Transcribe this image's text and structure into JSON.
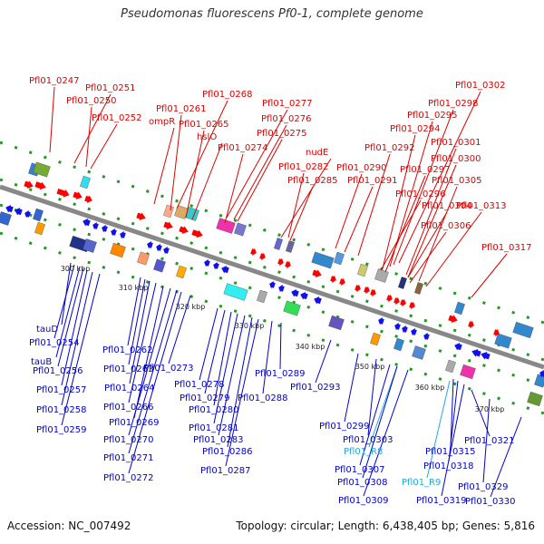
{
  "title": "Pseudomonas fluorescens Pf0-1, complete genome",
  "footer": {
    "accession": "Accession: NC_007492",
    "topology": "Topology: circular; Length: 6,438,405 bp; Genes: 5,816"
  },
  "colors": {
    "forward_label": "#dd0000",
    "reverse_label": "#0000cc",
    "rna_label": "#22aadd",
    "forward_arrow": "#ff0000",
    "reverse_arrow": "#1111ee",
    "backbone": "#888888",
    "dotted_track": "#229922"
  },
  "scale_ticks": [
    "300 kbp",
    "310 kbp",
    "320 kbp",
    "330 kbp",
    "340 kbp",
    "350 kbp",
    "360 kbp",
    "370 kbp"
  ],
  "forward_labels": [
    {
      "text": "Pfl01_0247"
    },
    {
      "text": "Pfl01_0251"
    },
    {
      "text": "Pfl01_0250"
    },
    {
      "text": "Pfl01_0252"
    },
    {
      "text": "Pfl01_0268"
    },
    {
      "text": "Pfl01_0261"
    },
    {
      "text": "ompR"
    },
    {
      "text": "Pfl01_0265"
    },
    {
      "text": "hslO"
    },
    {
      "text": "Pfl01_0277"
    },
    {
      "text": "Pfl01_0276"
    },
    {
      "text": "Pfl01_0275"
    },
    {
      "text": "Pfl01_0274"
    },
    {
      "text": "nudE"
    },
    {
      "text": "Pfl01_0282"
    },
    {
      "text": "Pfl01_0285"
    },
    {
      "text": "Pfl01_0290"
    },
    {
      "text": "Pfl01_0291"
    },
    {
      "text": "Pfl01_0292"
    },
    {
      "text": "Pfl01_0302"
    },
    {
      "text": "Pfl01_0298"
    },
    {
      "text": "Pfl01_0295"
    },
    {
      "text": "Pfl01_0294"
    },
    {
      "text": "Pfl01_0301"
    },
    {
      "text": "Pfl01_0300"
    },
    {
      "text": "Pfl01_0297"
    },
    {
      "text": "Pfl01_0305"
    },
    {
      "text": "Pfl01_0296"
    },
    {
      "text": "Pfl01_0304"
    },
    {
      "text": "Pfl01_0313"
    },
    {
      "text": "Pfl01_0306"
    },
    {
      "text": "Pfl01_0317"
    }
  ],
  "reverse_labels": [
    {
      "text": "tauD"
    },
    {
      "text": "Pfl01_0254"
    },
    {
      "text": "tauB"
    },
    {
      "text": "Pfl01_0256"
    },
    {
      "text": "Pfl01_0257"
    },
    {
      "text": "Pfl01_0258"
    },
    {
      "text": "Pfl01_0259"
    },
    {
      "text": "Pfl01_0262"
    },
    {
      "text": "Pfl01_0263"
    },
    {
      "text": "Pfl01_0264"
    },
    {
      "text": "Pfl01_0266"
    },
    {
      "text": "Pfl01_0269"
    },
    {
      "text": "Pfl01_0270"
    },
    {
      "text": "Pfl01_0271"
    },
    {
      "text": "Pfl01_0272"
    },
    {
      "text": "Pfl01_0273"
    },
    {
      "text": "Pfl01_0278"
    },
    {
      "text": "Pfl01_0279"
    },
    {
      "text": "Pfl01_0280"
    },
    {
      "text": "Pfl01_0281"
    },
    {
      "text": "Pfl01_0283"
    },
    {
      "text": "Pfl01_0286"
    },
    {
      "text": "Pfl01_0287"
    },
    {
      "text": "Pfl01_0289"
    },
    {
      "text": "Pfl01_0288"
    },
    {
      "text": "Pfl01_0293"
    },
    {
      "text": "Pfl01_0299"
    },
    {
      "text": "Pfl01_0303"
    },
    {
      "text": "Pfl01_R8"
    },
    {
      "text": "Pfl01_0307"
    },
    {
      "text": "Pfl01_0308"
    },
    {
      "text": "Pfl01_0309"
    },
    {
      "text": "Pfl01_0315"
    },
    {
      "text": "Pfl01_0318"
    },
    {
      "text": "Pfl01_R9"
    },
    {
      "text": "Pfl01_0319"
    },
    {
      "text": "Pfl01_0321"
    },
    {
      "text": "Pfl01_0329"
    },
    {
      "text": "Pfl01_0330"
    }
  ]
}
